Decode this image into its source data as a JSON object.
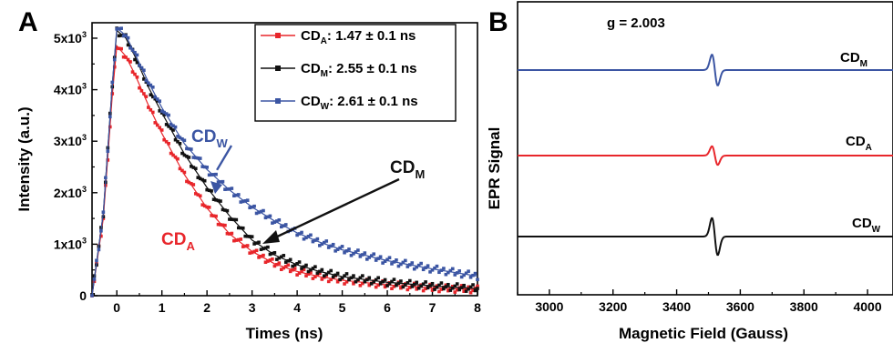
{
  "chart_data": [
    {
      "panel": "A",
      "type": "scatter",
      "title": "",
      "xlabel": "Times (ns)",
      "ylabel": "Intensity (a.u.)",
      "xlim": [
        -0.55,
        8
      ],
      "ylim": [
        0,
        5300
      ],
      "xticks": [
        0,
        1,
        2,
        3,
        4,
        5,
        6,
        7,
        8
      ],
      "xtick_labels": [
        "0",
        "1",
        "2",
        "3",
        "4",
        "5",
        "6",
        "7",
        "8"
      ],
      "yticks": [
        0,
        1000,
        2000,
        3000,
        4000,
        5000
      ],
      "ytick_labels": [
        {
          "base": "0",
          "exp": ""
        },
        {
          "base": "1x10",
          "exp": "3"
        },
        {
          "base": "2x10",
          "exp": "3"
        },
        {
          "base": "3x10",
          "exp": "3"
        },
        {
          "base": "4x10",
          "exp": "3"
        },
        {
          "base": "5x10",
          "exp": "3"
        }
      ],
      "grid": false,
      "legend_position": "top-right",
      "series": [
        {
          "name": "CD_A",
          "label": "CD",
          "sub": "A",
          "value_text": ": 1.47 ± 0.1 ns",
          "color": "#e8262b",
          "x": [
            -0.55,
            -0.3,
            -0.1,
            0.0,
            0.2,
            0.4,
            0.7,
            1.0,
            1.5,
            2.0,
            2.5,
            3.0,
            3.5,
            4.0,
            4.5,
            5.0,
            6.0,
            7.0,
            8.0
          ],
          "y": [
            0,
            1500,
            3900,
            4850,
            4650,
            4300,
            3700,
            3150,
            2350,
            1700,
            1200,
            860,
            620,
            470,
            370,
            300,
            210,
            150,
            120
          ]
        },
        {
          "name": "CD_M",
          "label": "CD",
          "sub": "M",
          "value_text": ":  2.55 ± 0.1 ns",
          "color": "#111111",
          "x": [
            -0.55,
            -0.3,
            -0.1,
            0.0,
            0.2,
            0.4,
            0.7,
            1.0,
            1.5,
            2.0,
            2.5,
            3.0,
            3.5,
            4.0,
            4.5,
            5.0,
            6.0,
            7.0,
            8.0
          ],
          "y": [
            0,
            1600,
            4100,
            5150,
            5000,
            4650,
            4050,
            3550,
            2750,
            2100,
            1550,
            1080,
            790,
            600,
            470,
            370,
            260,
            190,
            140
          ]
        },
        {
          "name": "CD_W",
          "label": "CD",
          "sub": "W",
          "value_text": ":  2.61 ± 0.1 ns",
          "color": "#3b55a3",
          "x": [
            -0.55,
            -0.3,
            -0.1,
            0.0,
            0.2,
            0.4,
            0.7,
            1.0,
            1.5,
            2.0,
            2.5,
            3.0,
            3.5,
            4.0,
            4.5,
            5.0,
            6.0,
            7.0,
            8.0
          ],
          "y": [
            0,
            1600,
            4100,
            5200,
            5050,
            4700,
            4150,
            3650,
            2950,
            2450,
            2050,
            1720,
            1450,
            1220,
            1040,
            890,
            680,
            520,
            380
          ]
        }
      ],
      "annotations": [
        {
          "text": "CD",
          "sub": "W",
          "color": "#3b55a3",
          "points_to": [
            2.1,
            2300
          ]
        },
        {
          "text": "CD",
          "sub": "M",
          "color": "#111111",
          "points_to": [
            3.2,
            1100
          ]
        },
        {
          "text": "CD",
          "sub": "A",
          "color": "#e8262b"
        }
      ]
    },
    {
      "panel": "B",
      "type": "line",
      "title": "",
      "xlabel": "Magnetic Field (Gauss)",
      "ylabel": "EPR Signal",
      "xlim": [
        2900,
        4080
      ],
      "xticks": [
        3000,
        3200,
        3400,
        3600,
        3800,
        4000
      ],
      "xtick_labels": [
        "3000",
        "3200",
        "3400",
        "3600",
        "3800",
        "4000"
      ],
      "grid": false,
      "center_field": 3520,
      "annotation": "g = 2.003",
      "series": [
        {
          "name": "CD_M",
          "label": "CD",
          "sub": "M",
          "color": "#3b55a3",
          "amplitude": 1.0
        },
        {
          "name": "CD_A",
          "label": "CD",
          "sub": "A",
          "color": "#e8262b",
          "amplitude": 0.6
        },
        {
          "name": "CD_W",
          "label": "CD",
          "sub": "W",
          "color": "#111111",
          "amplitude": 1.2
        }
      ]
    }
  ]
}
